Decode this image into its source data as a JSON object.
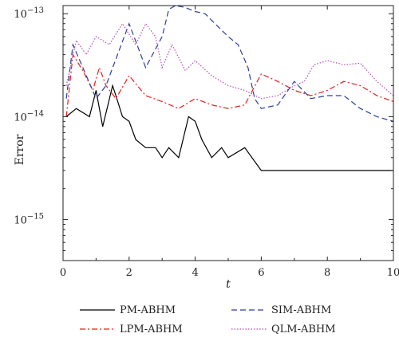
{
  "chart_data": {
    "type": "line",
    "title": "",
    "xlabel": "t",
    "ylabel": "Error",
    "xlim": [
      0,
      10
    ],
    "ylim": [
      4e-16,
      1.2e-13
    ],
    "y_scale": "log",
    "grid": false,
    "legend_position": "below-plot",
    "x_ticks": [
      0,
      2,
      4,
      6,
      8,
      10
    ],
    "x_tick_labels": [
      "0",
      "2",
      "4",
      "6",
      "8",
      "10"
    ],
    "y_ticks": [
      1e-15,
      1e-14,
      1e-13
    ],
    "y_tick_labels": [
      {
        "base": "10",
        "exp": "−15"
      },
      {
        "base": "10",
        "exp": "−14"
      },
      {
        "base": "10",
        "exp": "−13"
      }
    ],
    "series": [
      {
        "name": "PM-ABHM",
        "color": "#000000",
        "dash": "solid",
        "x": [
          0.1,
          0.4,
          0.8,
          1.0,
          1.2,
          1.5,
          1.6,
          1.8,
          2.0,
          2.2,
          2.5,
          2.8,
          3.0,
          3.2,
          3.5,
          3.8,
          4.0,
          4.2,
          4.5,
          4.8,
          5.0,
          5.5,
          6.0,
          7.0,
          8.0,
          9.0,
          10.0
        ],
        "y": [
          1e-14,
          1.2e-14,
          1e-14,
          1.8e-14,
          8e-15,
          2e-14,
          1.6e-14,
          1e-14,
          9e-15,
          6e-15,
          5e-15,
          5e-15,
          4e-15,
          5e-15,
          4e-15,
          1e-14,
          9e-15,
          6e-15,
          4e-15,
          5e-15,
          4e-15,
          5e-15,
          3e-15,
          3e-15,
          3e-15,
          3e-15,
          3e-15
        ]
      },
      {
        "name": "LPM-ABHM",
        "color": "#e0201b",
        "dash": "dashdot",
        "x": [
          0.1,
          0.3,
          0.6,
          0.9,
          1.1,
          1.3,
          1.6,
          2.0,
          2.5,
          3.0,
          3.5,
          4.0,
          4.5,
          5.0,
          5.5,
          6.0,
          6.5,
          7.0,
          7.5,
          8.0,
          8.5,
          9.0,
          9.5,
          10.0
        ],
        "y": [
          1e-14,
          4e-14,
          2.8e-14,
          1.8e-14,
          3e-14,
          2e-14,
          1.5e-14,
          2.5e-14,
          1.6e-14,
          1.4e-14,
          1.2e-14,
          1.5e-14,
          1.3e-14,
          1.2e-14,
          1.3e-14,
          2.6e-14,
          2.2e-14,
          1.8e-14,
          1.6e-14,
          1.8e-14,
          2.2e-14,
          2e-14,
          1.6e-14,
          1.4e-14
        ]
      },
      {
        "name": "SIM-ABHM",
        "color": "#2c3f9b",
        "dash": "dashed",
        "x": [
          0.1,
          0.3,
          0.6,
          1.0,
          1.3,
          2.0,
          2.5,
          3.0,
          3.2,
          3.4,
          3.7,
          4.0,
          4.3,
          4.6,
          5.0,
          5.3,
          5.6,
          5.8,
          6.0,
          6.5,
          7.0,
          7.5,
          8.0,
          8.5,
          9.0,
          9.5,
          10.0
        ],
        "y": [
          1.5e-14,
          5e-14,
          3e-14,
          1.5e-14,
          2e-14,
          8e-14,
          3e-14,
          6e-14,
          1.1e-13,
          1.2e-13,
          1.15e-13,
          1.05e-13,
          1e-13,
          8e-14,
          6e-14,
          5e-14,
          3e-14,
          1.5e-14,
          1.2e-14,
          1.3e-14,
          2.2e-14,
          1.5e-14,
          1.6e-14,
          1.6e-14,
          1.2e-14,
          1e-14,
          9e-15
        ]
      },
      {
        "name": "QLM-ABHM",
        "color": "#b14db6",
        "dash": "dotted",
        "x": [
          0.1,
          0.4,
          0.7,
          1.0,
          1.4,
          1.8,
          2.2,
          2.5,
          2.8,
          3.0,
          3.3,
          3.7,
          4.0,
          4.5,
          5.0,
          5.5,
          6.0,
          6.5,
          7.0,
          7.3,
          7.6,
          8.0,
          8.5,
          9.0,
          9.5,
          10.0
        ],
        "y": [
          2e-14,
          5.5e-14,
          4e-14,
          6e-14,
          5e-14,
          8e-14,
          5e-14,
          8e-14,
          6e-14,
          3e-14,
          5e-14,
          2.8e-14,
          3.5e-14,
          2.5e-14,
          2e-14,
          1.8e-14,
          1.5e-14,
          1.6e-14,
          2e-14,
          2.2e-14,
          3.2e-14,
          3.5e-14,
          3.2e-14,
          3.3e-14,
          2.2e-14,
          1.6e-14
        ]
      }
    ]
  }
}
